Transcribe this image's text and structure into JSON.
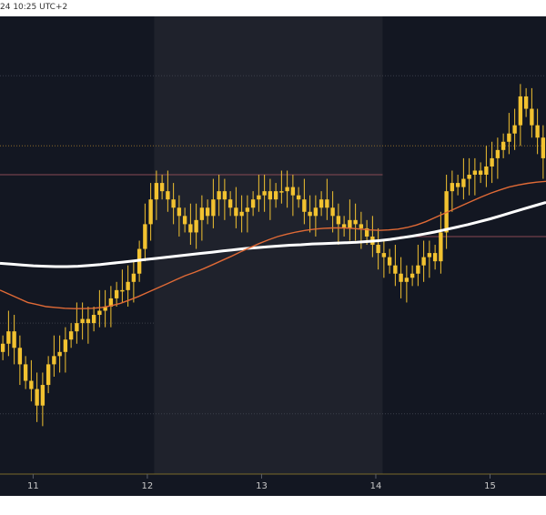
{
  "header": {
    "timestamp": "24 10:25 UTC+2"
  },
  "colors": {
    "background": "#131722",
    "highlight_band": "#1f222c",
    "candle": "#f2c230",
    "ema_fast": "#e06a36",
    "ema_slow": "#ffffff",
    "gridline": "#2c303a",
    "level_red": "#8a4a54",
    "level_orange": "#8c6a2a",
    "axis_base": "#7a6a2a"
  },
  "chart_data": {
    "type": "candlestick",
    "title": "",
    "xlabel": "",
    "ylabel": "",
    "x_ticks": [
      "11",
      "12",
      "13",
      "14",
      "15"
    ],
    "x_tick_positions": [
      10.84,
      11.84,
      12.84,
      13.84,
      14.84
    ],
    "xlim": [
      10.55,
      15.33
    ],
    "ylim": [
      0,
      100
    ],
    "highlight_band": [
      11.9,
      13.9
    ],
    "horizontal_levels": [
      {
        "value": 90,
        "style": "dotted",
        "color": "#3b3f4a",
        "from": 10.55,
        "to": 15.33
      },
      {
        "value": 73,
        "style": "dotted",
        "color": "#8c6a2a",
        "from": 10.55,
        "to": 15.33
      },
      {
        "value": 66,
        "style": "solid",
        "color": "#8a4a54",
        "from": 10.55,
        "to": 13.9
      },
      {
        "value": 51,
        "style": "solid",
        "color": "#8a4a54",
        "from": 14.05,
        "to": 15.33
      },
      {
        "value": 30,
        "style": "dotted",
        "color": "#3b3f4a",
        "from": 10.55,
        "to": 11.9
      },
      {
        "value": 8,
        "style": "dotted",
        "color": "#3b3f4a",
        "from": 10.55,
        "to": 15.33
      }
    ],
    "candles_close": [
      25,
      28,
      24,
      20,
      16,
      14,
      10,
      15,
      20,
      22,
      23,
      26,
      28,
      30,
      31,
      30,
      32,
      33,
      34,
      36,
      38,
      38,
      40,
      42,
      48,
      54,
      60,
      64,
      62,
      60,
      58,
      56,
      54,
      52,
      55,
      58,
      56,
      60,
      62,
      60,
      58,
      56,
      57,
      58,
      60,
      61,
      62,
      60,
      62,
      62,
      63,
      61,
      60,
      57,
      56,
      58,
      60,
      58,
      56,
      54,
      53,
      55,
      54,
      53,
      51,
      49,
      47,
      46,
      44,
      42,
      40,
      41,
      42,
      44,
      46,
      47,
      45,
      52,
      62,
      64,
      63,
      65,
      66,
      67,
      66,
      68,
      70,
      72,
      74,
      76,
      78,
      85,
      82,
      78,
      75,
      70
    ],
    "ema_fast": [
      38,
      37,
      36,
      35,
      34.5,
      34,
      33.8,
      33.6,
      33.5,
      33.5,
      33.6,
      33.8,
      34.2,
      34.8,
      35.6,
      36.5,
      37.5,
      38.5,
      39.5,
      40.5,
      41.5,
      42.3,
      43.2,
      44.2,
      45.2,
      46.2,
      47.3,
      48.3,
      49.3,
      50.2,
      51,
      51.6,
      52.1,
      52.5,
      52.8,
      53,
      53.1,
      53.1,
      53,
      52.8,
      52.6,
      52.5,
      52.6,
      52.8,
      53.2,
      53.8,
      54.6,
      55.6,
      56.6,
      57.6,
      58.6,
      59.6,
      60.6,
      61.5,
      62.3,
      63,
      63.5,
      63.9,
      64.2,
      64.4
    ],
    "ema_slow": [
      44.5,
      44.3,
      44.1,
      43.9,
      43.8,
      43.7,
      43.7,
      43.8,
      44,
      44.2,
      44.5,
      44.8,
      45.1,
      45.4,
      45.7,
      46,
      46.3,
      46.6,
      46.9,
      47.2,
      47.5,
      47.8,
      48.1,
      48.3,
      48.5,
      48.7,
      48.9,
      49,
      49.2,
      49.3,
      49.4,
      49.5,
      49.6,
      49.8,
      50,
      50.3,
      50.7,
      51.1,
      51.6,
      52.1,
      52.7,
      53.3,
      53.9,
      54.6,
      55.3,
      56.1,
      56.9,
      57.7,
      58.5,
      59.3
    ]
  }
}
